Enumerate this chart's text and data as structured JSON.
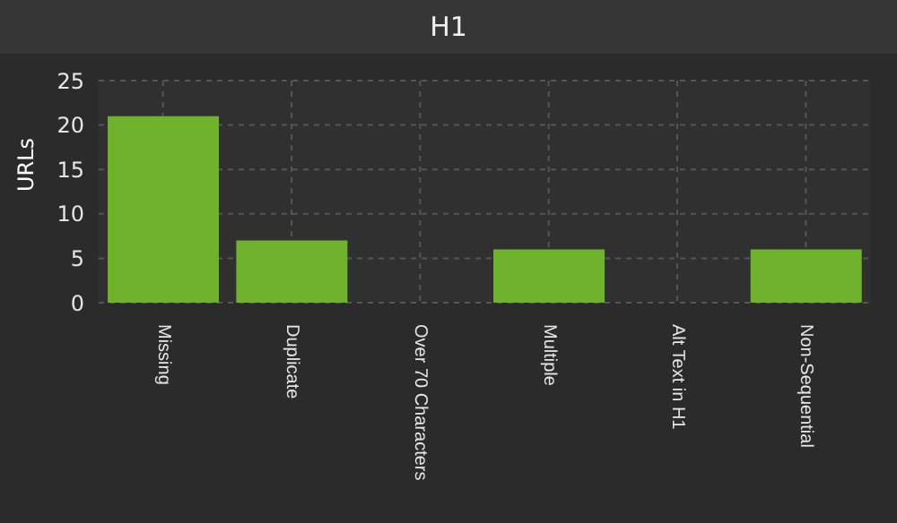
{
  "chart_data": {
    "type": "bar",
    "title": "H1",
    "ylabel": "URLs",
    "categories": [
      "Missing",
      "Duplicate",
      "Over 70 Characters",
      "Multiple",
      "Alt Text in H1",
      "Non-Sequential"
    ],
    "values": [
      21,
      7,
      0,
      6,
      0,
      6
    ],
    "color": "#6fb22b",
    "ylim": [
      0,
      25
    ],
    "yticks": [
      0,
      5,
      10,
      15,
      20,
      25
    ],
    "grid": true
  }
}
